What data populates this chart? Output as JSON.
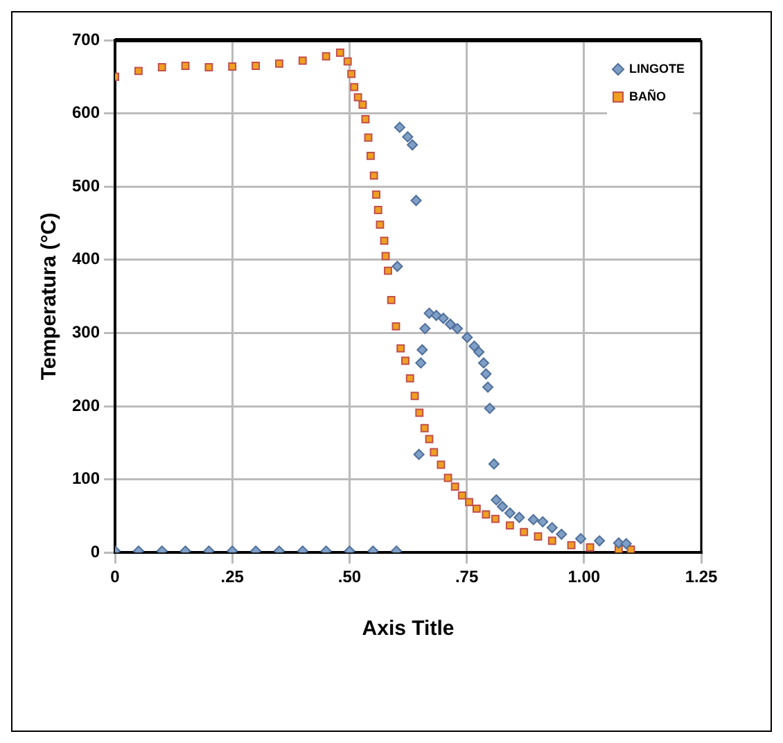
{
  "chart_data": {
    "type": "scatter",
    "xlabel": "Axis Title",
    "ylabel": "Temperatura (°C)",
    "xlim": [
      0,
      1.25
    ],
    "xticks": [
      0,
      {
        "value": 0.25,
        "label": ".25"
      },
      {
        "value": 0.5,
        "label": ".50"
      },
      {
        "value": 0.75,
        "label": ".75"
      },
      {
        "value": 1,
        "label": "1.00"
      },
      {
        "value": 1.25,
        "label": "1.25"
      }
    ],
    "ylim": [
      0,
      700
    ],
    "yticks": [
      0,
      100,
      200,
      300,
      400,
      500,
      600,
      700
    ],
    "grid": true,
    "legend": "top right",
    "series": [
      {
        "name": "LINGOTE",
        "color": "#7f9fc6",
        "marker": "diamond",
        "x": [
          0,
          0.05,
          0.1,
          0.15,
          0.2,
          0.25,
          0.3,
          0.35,
          0.4,
          0.45,
          0.5,
          0.55,
          0.6,
          0.602,
          0.607,
          0.624,
          0.634,
          0.642,
          0.648,
          0.652,
          0.655,
          0.661,
          0.67,
          0.685,
          0.7,
          0.715,
          0.73,
          0.751,
          0.766,
          0.776,
          0.786,
          0.791,
          0.795,
          0.799,
          0.808,
          0.813,
          0.826,
          0.842,
          0.862,
          0.892,
          0.912,
          0.932,
          0.952,
          0.993,
          1.033,
          1.074,
          1.09
        ],
        "values": [
          2,
          2,
          2,
          2,
          2,
          2,
          2,
          2,
          2,
          2,
          2,
          2,
          2,
          391,
          581,
          568,
          557,
          481,
          134,
          259,
          277,
          306,
          327,
          324,
          320,
          312,
          306,
          294,
          282,
          274,
          259,
          244,
          226,
          197,
          121,
          72,
          63,
          54,
          48,
          45,
          42,
          34,
          25,
          19,
          16,
          13,
          12
        ]
      },
      {
        "name": "BAÑO",
        "color": "#f0a020",
        "marker": "square",
        "x": [
          0,
          0.05,
          0.1,
          0.15,
          0.2,
          0.25,
          0.3,
          0.35,
          0.4,
          0.45,
          0.48,
          0.496,
          0.504,
          0.51,
          0.518,
          0.528,
          0.534,
          0.54,
          0.545,
          0.552,
          0.557,
          0.561,
          0.565,
          0.574,
          0.577,
          0.582,
          0.589,
          0.599,
          0.609,
          0.619,
          0.629,
          0.639,
          0.649,
          0.66,
          0.67,
          0.68,
          0.695,
          0.71,
          0.725,
          0.74,
          0.755,
          0.771,
          0.791,
          0.811,
          0.842,
          0.872,
          0.902,
          0.932,
          0.973,
          1.013,
          1.074,
          1.1
        ],
        "values": [
          650,
          658,
          663,
          665,
          663,
          664,
          665,
          668,
          672,
          678,
          683,
          671,
          654,
          636,
          622,
          612,
          592,
          567,
          542,
          515,
          489,
          468,
          448,
          426,
          405,
          385,
          345,
          309,
          279,
          262,
          238,
          214,
          191,
          170,
          155,
          137,
          120,
          102,
          90,
          78,
          69,
          60,
          52,
          46,
          37,
          28,
          22,
          16,
          10,
          7,
          4,
          4
        ]
      }
    ]
  }
}
